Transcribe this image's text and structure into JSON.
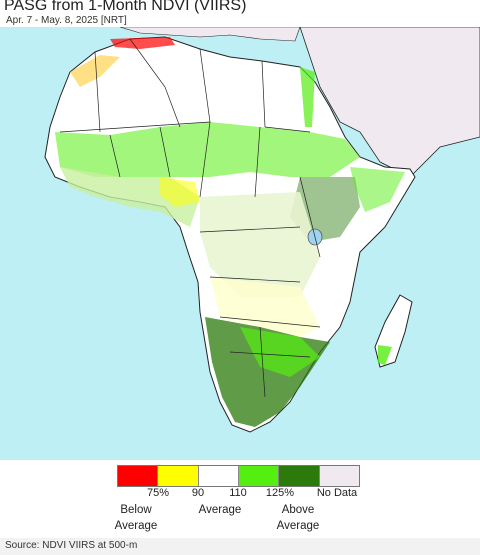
{
  "title": "PASG from 1-Month NDVI (VIIRS)",
  "subtitle": "Apr. 7 - May. 8, 2025 [NRT]",
  "legend": {
    "swatches": [
      {
        "name": "below-75",
        "color": "#ff0000"
      },
      {
        "name": "75-90",
        "color": "#ffff00"
      },
      {
        "name": "90-110",
        "color": "#ffffff"
      },
      {
        "name": "110-125",
        "color": "#55ee11"
      },
      {
        "name": "above-125",
        "color": "#2b7a0b"
      },
      {
        "name": "no-data",
        "color": "#f0eaf0"
      }
    ],
    "ticks": {
      "t75": "75%",
      "t90": "90",
      "t110": "110",
      "t125": "125%",
      "nodata": "No Data"
    },
    "categories": {
      "below_1": "Below",
      "below_2": "Average",
      "avg": "Average",
      "above_1": "Above",
      "above_2": "Average"
    }
  },
  "source": "Source: NDVI VIIRS at 500-m",
  "colors": {
    "ocean": "#bdeff5",
    "land": "#ffffff",
    "no_data": "#f0eaf0",
    "green": "#55ee11",
    "dark_green": "#2b7a0b",
    "yellow": "#ffff00",
    "red": "#ff0000"
  }
}
